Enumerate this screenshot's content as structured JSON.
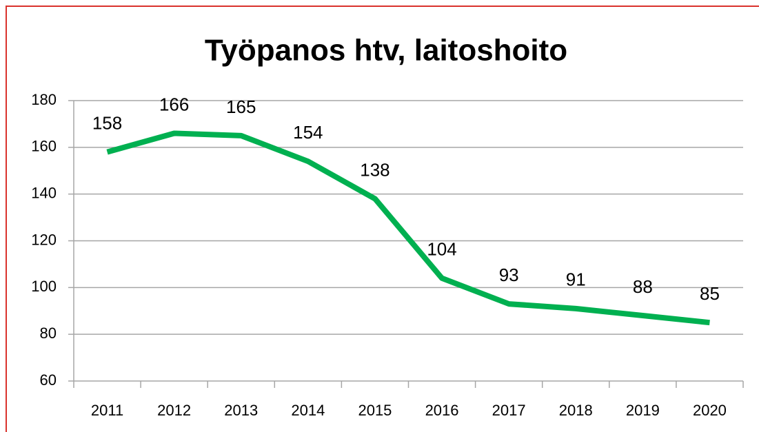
{
  "chart_data": {
    "type": "line",
    "title": "Työpanos htv, laitoshoito",
    "categories": [
      "2011",
      "2012",
      "2013",
      "2014",
      "2015",
      "2016",
      "2017",
      "2018",
      "2019",
      "2020"
    ],
    "series": [
      {
        "name": "Työpanos htv",
        "color": "#00b050",
        "values": [
          158,
          166,
          165,
          154,
          138,
          104,
          93,
          91,
          88,
          85
        ]
      }
    ],
    "ylim": [
      60,
      180
    ],
    "yticks": [
      60,
      80,
      100,
      120,
      140,
      160,
      180
    ],
    "grid": true,
    "data_labels": true
  }
}
